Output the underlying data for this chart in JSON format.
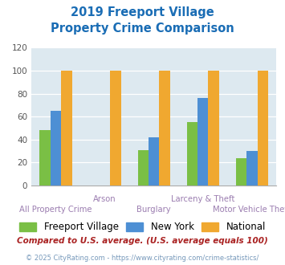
{
  "title_line1": "2019 Freeport Village",
  "title_line2": "Property Crime Comparison",
  "title_color": "#1a6db5",
  "categories": [
    "All Property Crime",
    "Arson",
    "Burglary",
    "Larceny & Theft",
    "Motor Vehicle Theft"
  ],
  "series": {
    "Freeport Village": [
      48,
      0,
      31,
      55,
      24
    ],
    "New York": [
      65,
      0,
      42,
      76,
      30
    ],
    "National": [
      100,
      100,
      100,
      100,
      100
    ]
  },
  "colors": {
    "Freeport Village": "#7abf45",
    "New York": "#4d8fd4",
    "National": "#f0a830"
  },
  "ylim": [
    0,
    120
  ],
  "yticks": [
    0,
    20,
    40,
    60,
    80,
    100,
    120
  ],
  "plot_bg": "#dde9f0",
  "xlabel_color": "#9b7db0",
  "legend_fontsize": 8.5,
  "footnote1": "Compared to U.S. average. (U.S. average equals 100)",
  "footnote2": "© 2025 CityRating.com - https://www.cityrating.com/crime-statistics/",
  "footnote1_color": "#aa2222",
  "footnote2_color": "#7799bb",
  "bar_width": 0.22
}
